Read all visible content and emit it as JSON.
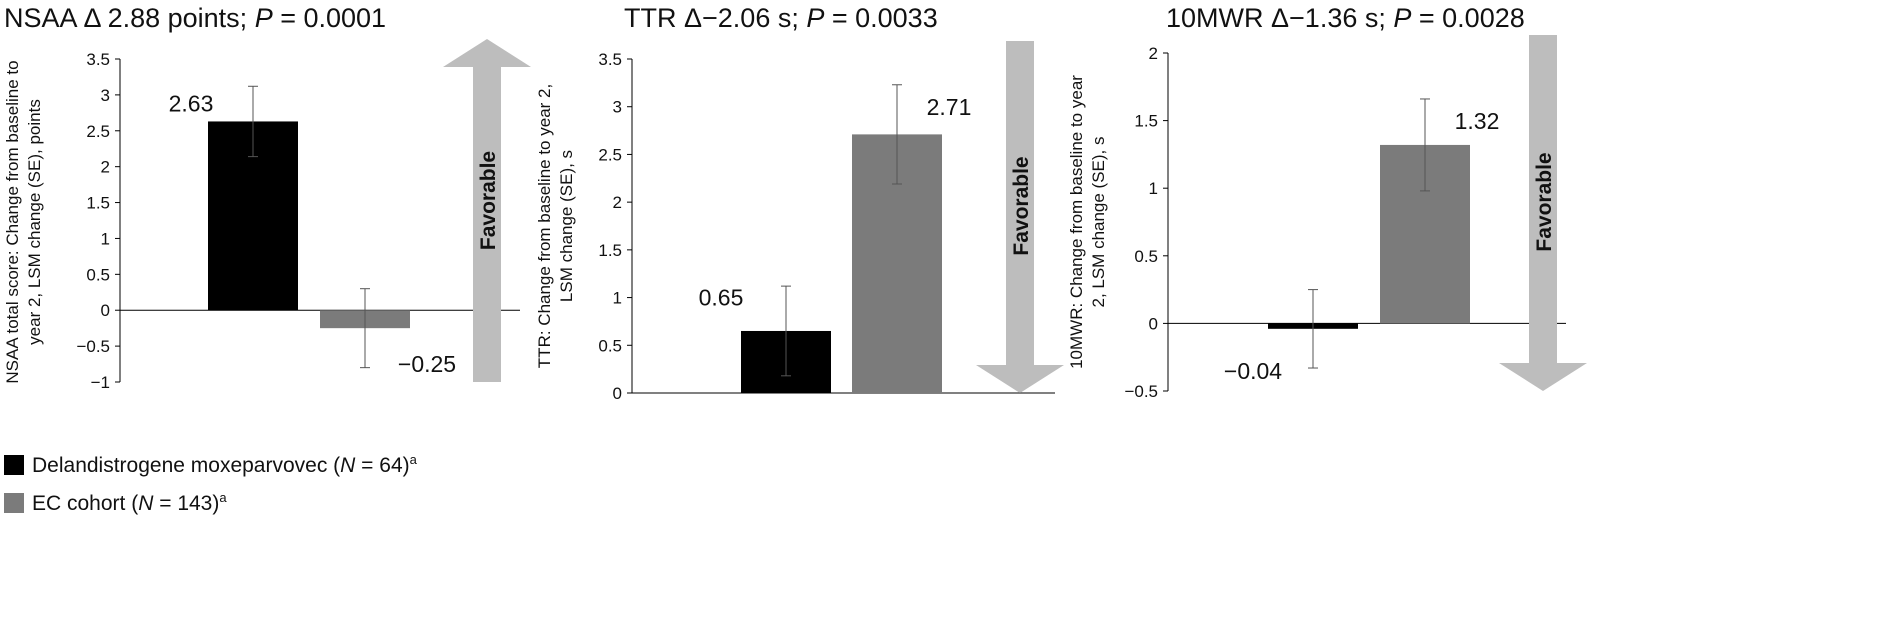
{
  "colors": {
    "treatment": "#000000",
    "control": "#7b7b7b",
    "arrow": "#bdbdbd"
  },
  "legend": {
    "treatment_name": "Delandistrogene moxeparvovec",
    "treatment_n": "64",
    "control_name": "EC cohort",
    "control_n": "143",
    "n_prefix": "N",
    "n_eq": " = ",
    "footnote": "a"
  },
  "chart_data": [
    {
      "type": "bar",
      "title_prefix": "NSAA Δ 2.88 points; ",
      "title_p_label": "P",
      "title_p_value": " = 0.0001",
      "ylabel_lines": [
        "NSAA total score: Change from baseline to",
        "year 2, LSM change (SE), points"
      ],
      "ylim": [
        -1,
        3.5
      ],
      "ticks": [
        "3.5",
        "3",
        "2.5",
        "2",
        "1.5",
        "1",
        "0.5",
        "0",
        "−0.5",
        "−1"
      ],
      "tick_values": [
        3.5,
        3,
        2.5,
        2,
        1.5,
        1,
        0.5,
        0,
        -0.5,
        -1
      ],
      "arrow_label": "Favorable",
      "arrow_direction": "up",
      "series": [
        {
          "name": "Delandistrogene moxeparvovec",
          "value": 2.63,
          "se": 0.49,
          "label": "2.63"
        },
        {
          "name": "EC cohort",
          "value": -0.25,
          "se": 0.55,
          "label": "−0.25"
        }
      ]
    },
    {
      "type": "bar",
      "title_prefix": "TTR Δ−2.06 s; ",
      "title_p_label": "P",
      "title_p_value": " = 0.0033",
      "ylabel_lines": [
        "TTR: Change from baseline to year 2,",
        "LSM change (SE), s"
      ],
      "ylim": [
        0,
        3.5
      ],
      "ticks": [
        "3.5",
        "3",
        "2.5",
        "2",
        "1.5",
        "1",
        "0.5",
        "0"
      ],
      "tick_values": [
        3.5,
        3,
        2.5,
        2,
        1.5,
        1,
        0.5,
        0
      ],
      "arrow_label": "Favorable",
      "arrow_direction": "down",
      "series": [
        {
          "name": "Delandistrogene moxeparvovec",
          "value": 0.65,
          "se": 0.47,
          "label": "0.65"
        },
        {
          "name": "EC cohort",
          "value": 2.71,
          "se": 0.52,
          "label": "2.71"
        }
      ]
    },
    {
      "type": "bar",
      "title_prefix": "10MWR Δ−1.36 s; ",
      "title_p_label": "P",
      "title_p_value": " = 0.0028",
      "ylabel_lines": [
        "10MWR: Change from baseline to year",
        "2, LSM change (SE), s"
      ],
      "ylim": [
        -0.5,
        2
      ],
      "ticks": [
        "2",
        "1.5",
        "1",
        "0.5",
        "0",
        "−0.5"
      ],
      "tick_values": [
        2,
        1.5,
        1,
        0.5,
        0,
        -0.5
      ],
      "arrow_label": "Favorable",
      "arrow_direction": "down",
      "series": [
        {
          "name": "Delandistrogene moxeparvovec",
          "value": -0.04,
          "se": 0.29,
          "label": "−0.04"
        },
        {
          "name": "EC cohort",
          "value": 1.32,
          "se": 0.34,
          "label": "1.32"
        }
      ]
    }
  ]
}
